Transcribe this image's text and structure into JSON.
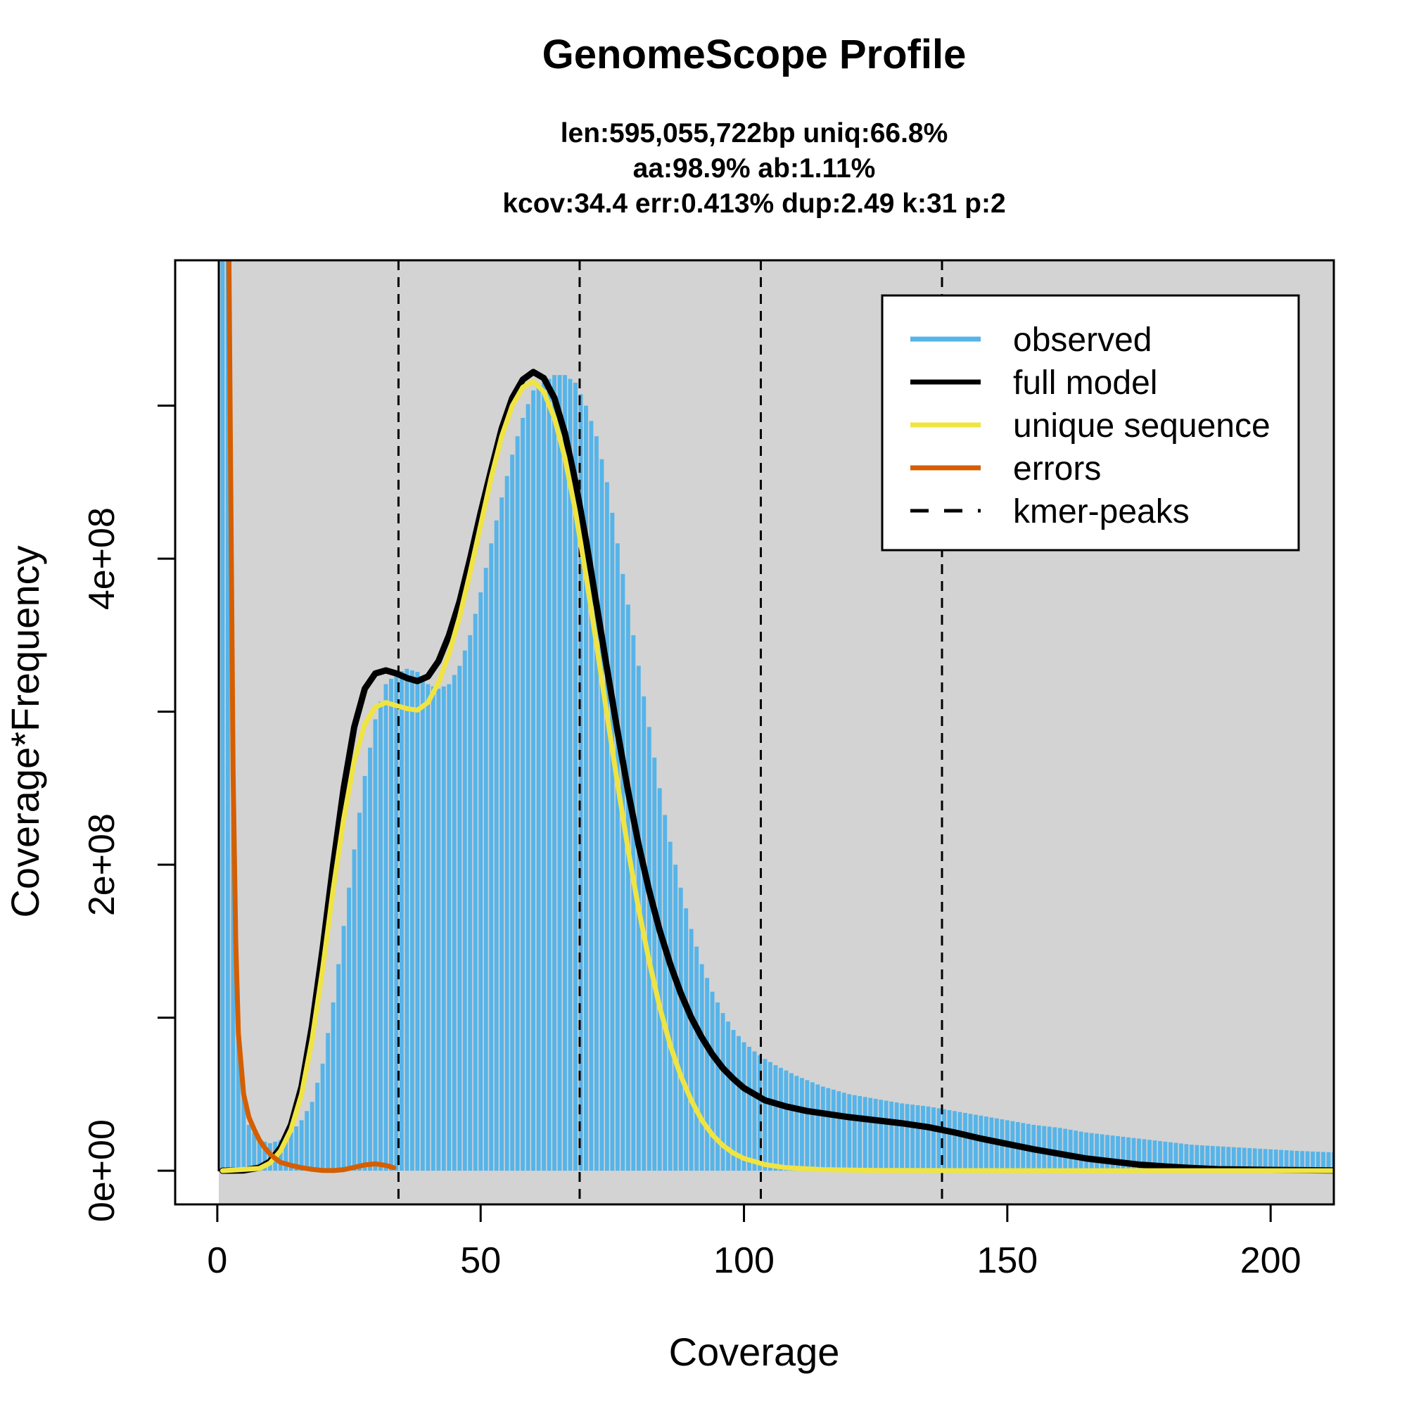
{
  "chart_data": {
    "type": "bar",
    "title": "GenomeScope Profile",
    "subtitle_lines": [
      "len:595,055,722bp uniq:66.8%",
      "aa:98.9% ab:1.11%",
      "kcov:34.4 err:0.413%  dup:2.49  k:31 p:2"
    ],
    "xlabel": "Coverage",
    "ylabel": "Coverage*Frequency",
    "xlim": [
      -8,
      212
    ],
    "ylim": [
      -22000000,
      595000000
    ],
    "x_ticks": [
      0,
      50,
      100,
      150,
      200
    ],
    "x_tick_labels": [
      "0",
      "50",
      "100",
      "150",
      "200"
    ],
    "y_ticks": [
      0,
      100000000,
      200000000,
      300000000,
      400000000,
      500000000
    ],
    "y_tick_labels": [
      "0e+00",
      "",
      "2e+08",
      "",
      "4e+08",
      ""
    ],
    "grid": false,
    "legend_position": "top-right",
    "colors": {
      "observed": "#56B4E9",
      "full_model": "#000000",
      "unique_sequence": "#F0E442",
      "errors": "#D55E00",
      "kmer_peaks": "#000000",
      "plot_background": "#D3D3D3"
    },
    "kmer_peaks": [
      34.4,
      68.8,
      103.2,
      137.6
    ],
    "legend": [
      {
        "label": "observed",
        "color": "#56B4E9",
        "style": "solid"
      },
      {
        "label": "full model",
        "color": "#000000",
        "style": "solid"
      },
      {
        "label": "unique sequence",
        "color": "#F0E442",
        "style": "solid"
      },
      {
        "label": "errors",
        "color": "#D55E00",
        "style": "solid"
      },
      {
        "label": "kmer-peaks",
        "color": "#000000",
        "style": "dashed"
      }
    ],
    "observed_points": [
      [
        1,
        1800000000
      ],
      [
        2,
        620000000
      ],
      [
        3,
        250000000
      ],
      [
        4,
        100000000
      ],
      [
        5,
        50000000
      ],
      [
        6,
        30000000
      ],
      [
        8,
        20000000
      ],
      [
        10,
        18000000
      ],
      [
        12,
        20000000
      ],
      [
        14,
        25000000
      ],
      [
        16,
        33000000
      ],
      [
        18,
        45000000
      ],
      [
        20,
        70000000
      ],
      [
        22,
        110000000
      ],
      [
        24,
        160000000
      ],
      [
        26,
        210000000
      ],
      [
        28,
        258000000
      ],
      [
        30,
        295000000
      ],
      [
        32,
        318000000
      ],
      [
        34,
        325000000
      ],
      [
        36,
        328000000
      ],
      [
        38,
        326000000
      ],
      [
        40,
        318000000
      ],
      [
        42,
        315000000
      ],
      [
        44,
        318000000
      ],
      [
        46,
        330000000
      ],
      [
        48,
        350000000
      ],
      [
        50,
        378000000
      ],
      [
        52,
        410000000
      ],
      [
        54,
        440000000
      ],
      [
        56,
        468000000
      ],
      [
        58,
        492000000
      ],
      [
        60,
        510000000
      ],
      [
        62,
        515000000
      ],
      [
        64,
        520000000
      ],
      [
        66,
        520000000
      ],
      [
        68,
        515000000
      ],
      [
        70,
        500000000
      ],
      [
        72,
        480000000
      ],
      [
        74,
        450000000
      ],
      [
        76,
        410000000
      ],
      [
        78,
        370000000
      ],
      [
        80,
        330000000
      ],
      [
        82,
        290000000
      ],
      [
        84,
        250000000
      ],
      [
        86,
        215000000
      ],
      [
        88,
        185000000
      ],
      [
        90,
        158000000
      ],
      [
        92,
        135000000
      ],
      [
        94,
        117000000
      ],
      [
        96,
        103000000
      ],
      [
        98,
        92000000
      ],
      [
        100,
        84000000
      ],
      [
        102,
        78000000
      ],
      [
        104,
        73000000
      ],
      [
        106,
        69000000
      ],
      [
        110,
        62000000
      ],
      [
        115,
        55000000
      ],
      [
        120,
        50000000
      ],
      [
        125,
        47000000
      ],
      [
        130,
        44000000
      ],
      [
        135,
        42000000
      ],
      [
        140,
        39000000
      ],
      [
        145,
        36000000
      ],
      [
        150,
        33000000
      ],
      [
        155,
        30000000
      ],
      [
        160,
        28000000
      ],
      [
        165,
        25000000
      ],
      [
        170,
        23000000
      ],
      [
        175,
        21000000
      ],
      [
        180,
        19000000
      ],
      [
        185,
        17000000
      ],
      [
        190,
        16000000
      ],
      [
        195,
        15000000
      ],
      [
        200,
        14000000
      ],
      [
        205,
        13000000
      ],
      [
        212,
        12000000
      ]
    ],
    "full_model_points": [
      [
        1,
        0
      ],
      [
        5,
        200000
      ],
      [
        8,
        2000000
      ],
      [
        10,
        6000000
      ],
      [
        12,
        15000000
      ],
      [
        14,
        30000000
      ],
      [
        16,
        55000000
      ],
      [
        18,
        95000000
      ],
      [
        20,
        145000000
      ],
      [
        22,
        200000000
      ],
      [
        24,
        250000000
      ],
      [
        26,
        290000000
      ],
      [
        28,
        315000000
      ],
      [
        30,
        325000000
      ],
      [
        32,
        327000000
      ],
      [
        34,
        325000000
      ],
      [
        36,
        322000000
      ],
      [
        38,
        320000000
      ],
      [
        40,
        323000000
      ],
      [
        42,
        333000000
      ],
      [
        44,
        350000000
      ],
      [
        46,
        372000000
      ],
      [
        48,
        400000000
      ],
      [
        50,
        430000000
      ],
      [
        52,
        458000000
      ],
      [
        54,
        485000000
      ],
      [
        56,
        505000000
      ],
      [
        58,
        517000000
      ],
      [
        60,
        522000000
      ],
      [
        62,
        518000000
      ],
      [
        64,
        505000000
      ],
      [
        66,
        482000000
      ],
      [
        68,
        450000000
      ],
      [
        70,
        412000000
      ],
      [
        72,
        370000000
      ],
      [
        74,
        328000000
      ],
      [
        76,
        287000000
      ],
      [
        78,
        248000000
      ],
      [
        80,
        213000000
      ],
      [
        82,
        183000000
      ],
      [
        84,
        157000000
      ],
      [
        86,
        135000000
      ],
      [
        88,
        116000000
      ],
      [
        90,
        100000000
      ],
      [
        92,
        87000000
      ],
      [
        94,
        76000000
      ],
      [
        96,
        67000000
      ],
      [
        98,
        60000000
      ],
      [
        100,
        54000000
      ],
      [
        104,
        46000000
      ],
      [
        108,
        42000000
      ],
      [
        112,
        39000000
      ],
      [
        116,
        37000000
      ],
      [
        120,
        35000000
      ],
      [
        125,
        33000000
      ],
      [
        130,
        31000000
      ],
      [
        135,
        28500000
      ],
      [
        140,
        25000000
      ],
      [
        145,
        21000000
      ],
      [
        150,
        17500000
      ],
      [
        155,
        14000000
      ],
      [
        160,
        11000000
      ],
      [
        165,
        8000000
      ],
      [
        170,
        6000000
      ],
      [
        175,
        4000000
      ],
      [
        180,
        2800000
      ],
      [
        185,
        1800000
      ],
      [
        190,
        1000000
      ],
      [
        200,
        500000
      ],
      [
        212,
        200000
      ]
    ],
    "unique_sequence_points": [
      [
        1,
        0
      ],
      [
        8,
        1500000
      ],
      [
        10,
        5000000
      ],
      [
        12,
        13000000
      ],
      [
        14,
        27000000
      ],
      [
        16,
        50000000
      ],
      [
        18,
        86000000
      ],
      [
        20,
        132000000
      ],
      [
        22,
        184000000
      ],
      [
        24,
        230000000
      ],
      [
        26,
        268000000
      ],
      [
        28,
        292000000
      ],
      [
        30,
        303000000
      ],
      [
        32,
        306000000
      ],
      [
        34,
        304000000
      ],
      [
        36,
        302000000
      ],
      [
        38,
        301000000
      ],
      [
        40,
        306000000
      ],
      [
        42,
        319000000
      ],
      [
        44,
        338000000
      ],
      [
        46,
        362000000
      ],
      [
        48,
        391000000
      ],
      [
        50,
        422000000
      ],
      [
        52,
        453000000
      ],
      [
        54,
        480000000
      ],
      [
        56,
        500000000
      ],
      [
        58,
        512000000
      ],
      [
        60,
        516000000
      ],
      [
        62,
        509000000
      ],
      [
        64,
        492000000
      ],
      [
        66,
        466000000
      ],
      [
        68,
        431000000
      ],
      [
        70,
        389000000
      ],
      [
        72,
        344000000
      ],
      [
        74,
        298000000
      ],
      [
        76,
        253000000
      ],
      [
        78,
        210000000
      ],
      [
        80,
        171000000
      ],
      [
        82,
        137000000
      ],
      [
        84,
        107000000
      ],
      [
        86,
        82000000
      ],
      [
        88,
        62000000
      ],
      [
        90,
        46000000
      ],
      [
        92,
        33000000
      ],
      [
        94,
        23500000
      ],
      [
        96,
        16500000
      ],
      [
        98,
        11500000
      ],
      [
        100,
        8000000
      ],
      [
        104,
        4000000
      ],
      [
        108,
        2000000
      ],
      [
        115,
        700000
      ],
      [
        125,
        200000
      ],
      [
        140,
        50000
      ],
      [
        212,
        0
      ]
    ],
    "errors_points": [
      [
        2.2,
        600000000
      ],
      [
        2.5,
        470000000
      ],
      [
        3,
        260000000
      ],
      [
        3.5,
        150000000
      ],
      [
        4,
        90000000
      ],
      [
        5,
        50000000
      ],
      [
        6,
        35000000
      ],
      [
        7,
        27000000
      ],
      [
        8,
        20000000
      ],
      [
        9,
        15000000
      ],
      [
        10,
        11000000
      ],
      [
        11,
        8000000
      ],
      [
        12,
        5500000
      ],
      [
        14,
        3500000
      ],
      [
        16,
        2000000
      ],
      [
        18,
        900000
      ],
      [
        20,
        200000
      ],
      [
        22,
        100000
      ],
      [
        24,
        700000
      ],
      [
        26,
        2200000
      ],
      [
        28,
        3800000
      ],
      [
        30,
        4500000
      ],
      [
        32,
        3500000
      ],
      [
        33.5,
        2000000
      ]
    ]
  }
}
